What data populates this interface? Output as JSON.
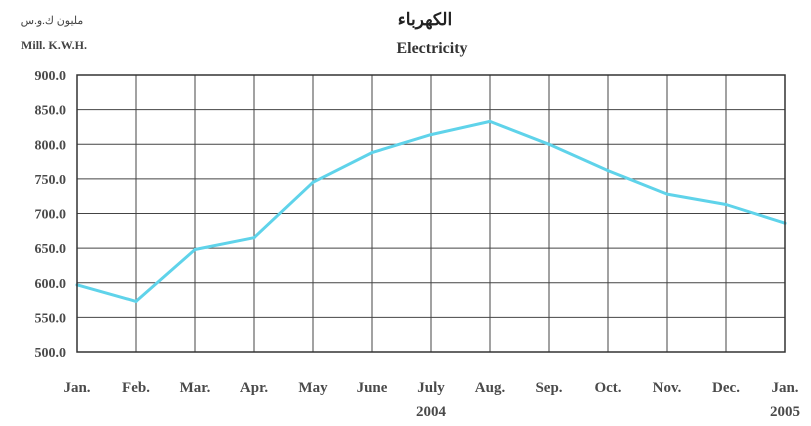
{
  "chart_data": {
    "type": "line",
    "title": "الكهرباء",
    "subtitle": "Electricity",
    "ylabel_ar": "مليون ك.و.س",
    "ylabel": "Mill. K.W.H.",
    "categories": [
      "Jan.",
      "Feb.",
      "Mar.",
      "Apr.",
      "May",
      "June",
      "July",
      "Aug.",
      "Sep.",
      "Oct.",
      "Nov.",
      "Dec.",
      "Jan."
    ],
    "years": [
      {
        "label": "2004",
        "category_index": 6
      },
      {
        "label": "2005",
        "category_index": 12
      }
    ],
    "yticks": [
      "500.0",
      "550.0",
      "600.0",
      "650.0",
      "700.0",
      "750.0",
      "800.0",
      "850.0",
      "900.0"
    ],
    "ylim": [
      500,
      900
    ],
    "grid": true,
    "series": [
      {
        "color": "#5fd3ea",
        "values": [
          597,
          573,
          648,
          665,
          745,
          788,
          814,
          833,
          800,
          762,
          728,
          713,
          686
        ]
      }
    ]
  }
}
